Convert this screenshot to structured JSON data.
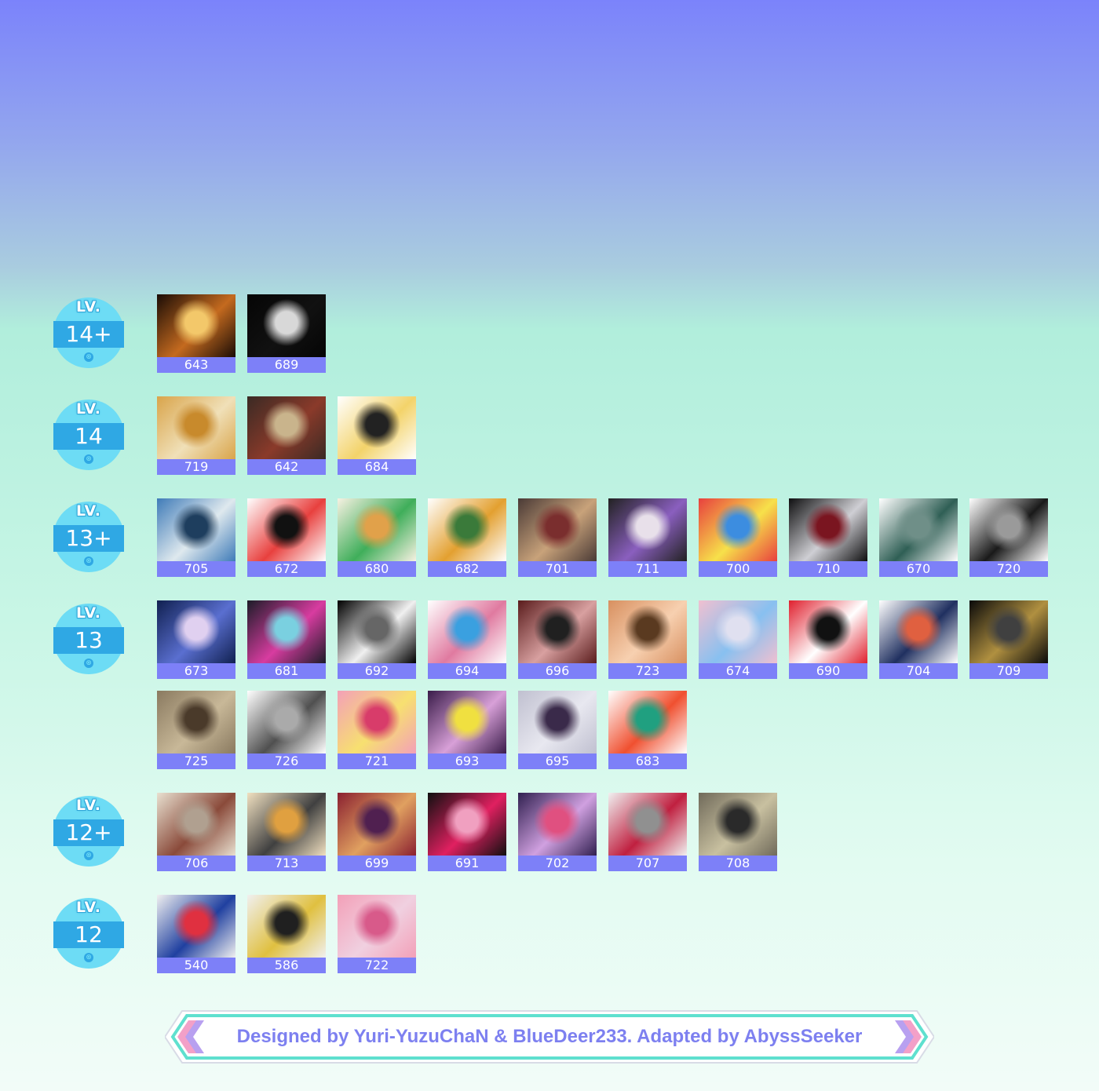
{
  "levels": [
    {
      "badge_top": "LV.",
      "value": "14+",
      "charts": [
        "643",
        "689"
      ]
    },
    {
      "badge_top": "LV.",
      "value": "14",
      "charts": [
        "719",
        "642",
        "684"
      ]
    },
    {
      "badge_top": "LV.",
      "value": "13+",
      "charts": [
        "705",
        "672",
        "680",
        "682",
        "701",
        "711",
        "700",
        "710",
        "670",
        "720"
      ]
    },
    {
      "badge_top": "LV.",
      "value": "13",
      "charts": [
        "673",
        "681",
        "692",
        "694",
        "696",
        "723",
        "674",
        "690",
        "704",
        "709",
        "725",
        "726",
        "721",
        "693",
        "695",
        "683"
      ]
    },
    {
      "badge_top": "LV.",
      "value": "12+",
      "charts": [
        "706",
        "713",
        "699",
        "691",
        "702",
        "707",
        "708"
      ]
    },
    {
      "badge_top": "LV.",
      "value": "12",
      "charts": [
        "540",
        "586",
        "722"
      ]
    }
  ],
  "footer": {
    "credit": "Designed by Yuri-YuzuChaN & BlueDeer233. Adapted by AbyssSeeker"
  },
  "colors": {
    "number_bar": "#7d80f8",
    "badge_light": "#6ddcf5",
    "badge_dark": "#2fa8e4",
    "footer_text": "#7d80f0"
  },
  "art": {
    "643": [
      "#1a0c06",
      "#c46a1f",
      "#f3c86a"
    ],
    "689": [
      "#050505",
      "#111111",
      "#d8d8d8"
    ],
    "719": [
      "#d9a44a",
      "#f0e0b8",
      "#c88a2c"
    ],
    "642": [
      "#3a2a24",
      "#8a3a2a",
      "#c9b48c"
    ],
    "684": [
      "#ffffff",
      "#f3d36a",
      "#222222"
    ],
    "705": [
      "#3f7bb8",
      "#dfe9ee",
      "#1e3e5e"
    ],
    "672": [
      "#ffffff",
      "#e8403e",
      "#111111"
    ],
    "680": [
      "#f7f1e2",
      "#3fae5a",
      "#e1a14a"
    ],
    "682": [
      "#ffffff",
      "#e3a030",
      "#3a7a3a"
    ],
    "701": [
      "#4a3a36",
      "#c8a27a",
      "#7a2e2e"
    ],
    "711": [
      "#222222",
      "#8a5fbf",
      "#e8e0ea"
    ],
    "700": [
      "#e8403e",
      "#f7e14a",
      "#3c8de0"
    ],
    "710": [
      "#0f0f10",
      "#cfcfd4",
      "#7a1520"
    ],
    "670": [
      "#ffffff",
      "#2f5f55",
      "#6f8f88"
    ],
    "720": [
      "#ffffff",
      "#1a1a1a",
      "#9a9a9a"
    ],
    "673": [
      "#102050",
      "#5a6fd0",
      "#e0d0f0"
    ],
    "681": [
      "#1c1c28",
      "#d83ca0",
      "#7ad0e0"
    ],
    "692": [
      "#000000",
      "#f0f0f0",
      "#666666"
    ],
    "694": [
      "#ffffff",
      "#e07aa0",
      "#3aa0e0"
    ],
    "696": [
      "#5a1c1c",
      "#d8a0a0",
      "#202020"
    ],
    "723": [
      "#d89060",
      "#f7d0b0",
      "#5a3a20"
    ],
    "674": [
      "#f0c0d0",
      "#88c0f0",
      "#e0e0f0"
    ],
    "690": [
      "#e0202e",
      "#ffffff",
      "#111111"
    ],
    "704": [
      "#ffffff",
      "#203060",
      "#e06040"
    ],
    "709": [
      "#0a0a0a",
      "#b09040",
      "#404040"
    ],
    "725": [
      "#8a7a60",
      "#c8b898",
      "#4a3a2a"
    ],
    "726": [
      "#ffffff",
      "#505050",
      "#aaaaaa"
    ],
    "721": [
      "#f3a0b8",
      "#f7e070",
      "#d83c6a"
    ],
    "693": [
      "#3a1c4a",
      "#d8a0d8",
      "#f0e040"
    ],
    "695": [
      "#c0c0d0",
      "#e8e8f0",
      "#3a2a4a"
    ],
    "683": [
      "#ffffff",
      "#f05030",
      "#20a080"
    ],
    "706": [
      "#e8e0d0",
      "#8a4a3a",
      "#b0a090"
    ],
    "713": [
      "#f0e0c0",
      "#404040",
      "#e0a040"
    ],
    "699": [
      "#8a2030",
      "#e0a060",
      "#502050"
    ],
    "691": [
      "#101010",
      "#e02060",
      "#f0a0c0"
    ],
    "702": [
      "#302050",
      "#d0a0e0",
      "#e05080"
    ],
    "707": [
      "#f0f0f0",
      "#c02040",
      "#909090"
    ],
    "708": [
      "#706a5a",
      "#c8c0a0",
      "#2a2a2a"
    ],
    "540": [
      "#f0f0f0",
      "#2040a0",
      "#e03040"
    ],
    "586": [
      "#f0f0f0",
      "#e0c040",
      "#202020"
    ],
    "722": [
      "#f3a0b8",
      "#f0d0e0",
      "#d85a8a"
    ]
  }
}
